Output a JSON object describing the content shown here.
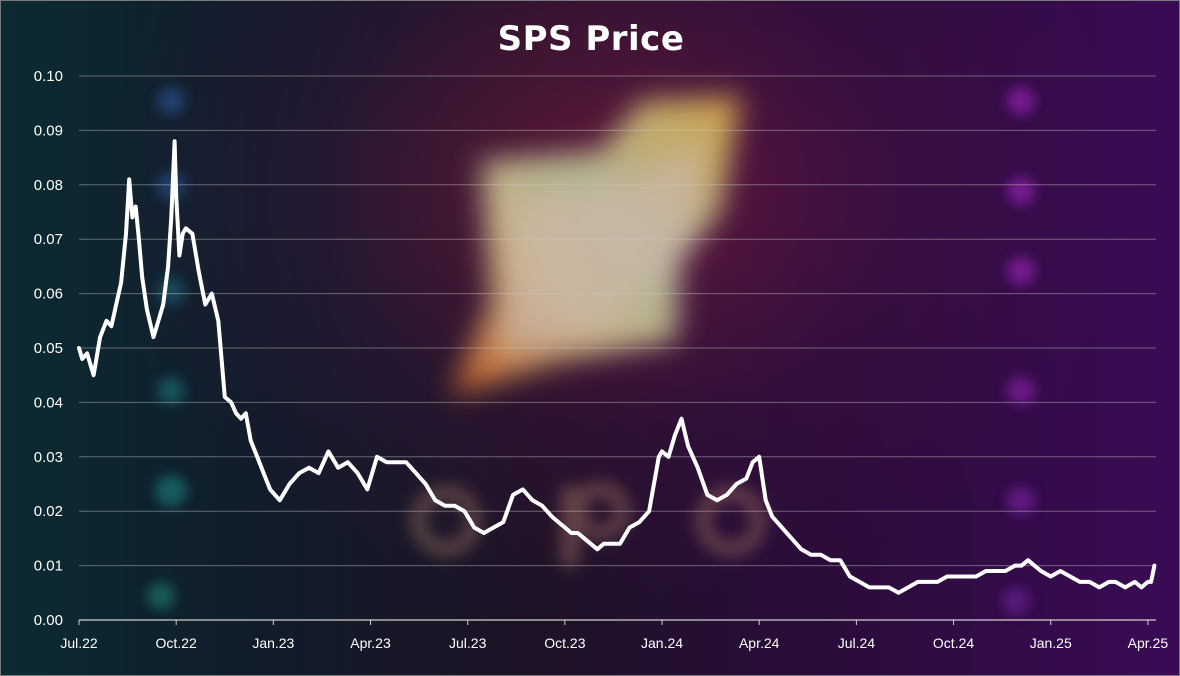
{
  "chart_data": {
    "type": "line",
    "title": "SPS Price",
    "xlabel": "",
    "ylabel": "",
    "ylim": [
      0,
      0.1
    ],
    "yticks": [
      "0.00",
      "0.01",
      "0.02",
      "0.03",
      "0.04",
      "0.05",
      "0.06",
      "0.07",
      "0.08",
      "0.09",
      "0.10"
    ],
    "xticks": [
      "Jul.22",
      "Oct.22",
      "Jan.23",
      "Apr.23",
      "Jul.23",
      "Oct.23",
      "Jan.24",
      "Apr.24",
      "Jul.24",
      "Oct.24",
      "Jan.25",
      "Apr.25"
    ],
    "grid": true,
    "legend": "none",
    "series": [
      {
        "color": "#ffffff",
        "x_month_index": [
          0,
          0.1,
          0.25,
          0.45,
          0.65,
          0.85,
          1.0,
          1.15,
          1.3,
          1.45,
          1.55,
          1.65,
          1.75,
          1.85,
          1.95,
          2.1,
          2.3,
          2.45,
          2.6,
          2.75,
          2.85,
          2.95,
          3.0,
          3.1,
          3.2,
          3.3,
          3.5,
          3.7,
          3.9,
          4.1,
          4.3,
          4.5,
          4.7,
          4.85,
          5.0,
          5.15,
          5.3,
          5.5,
          5.7,
          5.9,
          6.2,
          6.5,
          6.8,
          7.1,
          7.4,
          7.7,
          8.0,
          8.3,
          8.6,
          8.9,
          9.2,
          9.5,
          9.8,
          10.1,
          10.4,
          10.7,
          11.0,
          11.3,
          11.6,
          11.9,
          12.2,
          12.5,
          12.8,
          13.1,
          13.4,
          13.7,
          14.0,
          14.3,
          14.6,
          14.8,
          15.0,
          15.2,
          15.4,
          15.6,
          15.8,
          16.0,
          16.2,
          16.4,
          16.7,
          17.0,
          17.3,
          17.6,
          17.9,
          18.0,
          18.2,
          18.4,
          18.6,
          18.8,
          19.1,
          19.4,
          19.7,
          20.0,
          20.3,
          20.6,
          20.8,
          21.0,
          21.2,
          21.4,
          21.7,
          22.0,
          22.3,
          22.6,
          22.9,
          23.2,
          23.5,
          23.8,
          24.1,
          24.4,
          24.7,
          25.0,
          25.3,
          25.6,
          25.9,
          26.2,
          26.5,
          26.8,
          27.1,
          27.4,
          27.7,
          28.0,
          28.3,
          28.6,
          28.9,
          29.1,
          29.3,
          29.5,
          29.7,
          30.0,
          30.3,
          30.6,
          30.9,
          31.2,
          31.5,
          31.8,
          32.0,
          32.3,
          32.6,
          32.8,
          33.0,
          33.1,
          33.2
        ],
        "y": [
          0.05,
          0.048,
          0.049,
          0.045,
          0.052,
          0.055,
          0.054,
          0.058,
          0.062,
          0.071,
          0.081,
          0.074,
          0.076,
          0.07,
          0.063,
          0.057,
          0.052,
          0.055,
          0.058,
          0.065,
          0.074,
          0.088,
          0.078,
          0.067,
          0.071,
          0.072,
          0.071,
          0.064,
          0.058,
          0.06,
          0.055,
          0.041,
          0.04,
          0.038,
          0.037,
          0.038,
          0.033,
          0.03,
          0.027,
          0.024,
          0.022,
          0.025,
          0.027,
          0.028,
          0.027,
          0.031,
          0.028,
          0.029,
          0.027,
          0.024,
          0.03,
          0.029,
          0.029,
          0.029,
          0.027,
          0.025,
          0.022,
          0.021,
          0.021,
          0.02,
          0.017,
          0.016,
          0.017,
          0.018,
          0.023,
          0.024,
          0.022,
          0.021,
          0.019,
          0.018,
          0.017,
          0.016,
          0.016,
          0.015,
          0.014,
          0.013,
          0.014,
          0.014,
          0.014,
          0.017,
          0.018,
          0.02,
          0.03,
          0.031,
          0.03,
          0.034,
          0.037,
          0.032,
          0.028,
          0.023,
          0.022,
          0.023,
          0.025,
          0.026,
          0.029,
          0.03,
          0.022,
          0.019,
          0.017,
          0.015,
          0.013,
          0.012,
          0.012,
          0.011,
          0.011,
          0.008,
          0.007,
          0.006,
          0.006,
          0.006,
          0.005,
          0.006,
          0.007,
          0.007,
          0.007,
          0.008,
          0.008,
          0.008,
          0.008,
          0.009,
          0.009,
          0.009,
          0.01,
          0.01,
          0.011,
          0.01,
          0.009,
          0.008,
          0.009,
          0.008,
          0.007,
          0.007,
          0.006,
          0.007,
          0.007,
          0.006,
          0.007,
          0.006,
          0.007,
          0.007,
          0.01
        ]
      }
    ]
  }
}
